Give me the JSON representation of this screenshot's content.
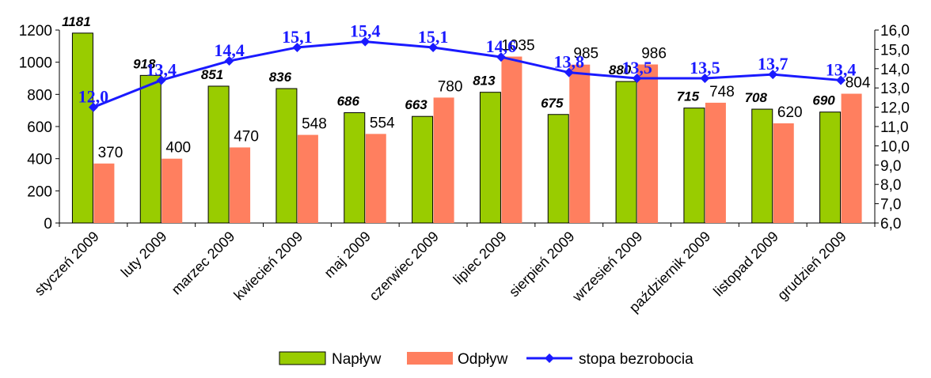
{
  "chart_data": {
    "type": "bar",
    "categories": [
      "styczeń 2009",
      "luty 2009",
      "marzec 2009",
      "kwiecień 2009",
      "maj 2009",
      "czerwiec 2009",
      "lipiec 2009",
      "sierpień 2009",
      "wrzesień 2009",
      "październik 2009",
      "listopad 2009",
      "grudzień 2009"
    ],
    "series": [
      {
        "name": "Napływ",
        "type": "bar",
        "axis": "left",
        "color": "#99cc00",
        "values": [
          1181,
          918,
          851,
          836,
          686,
          663,
          813,
          675,
          880,
          715,
          708,
          690
        ],
        "labels": [
          "1181",
          "918",
          "851",
          "836",
          "686",
          "663",
          "813",
          "675",
          "880",
          "715",
          "708",
          "690"
        ]
      },
      {
        "name": "Odpływ",
        "type": "bar",
        "axis": "left",
        "color": "#ff7f5f",
        "values": [
          370,
          400,
          470,
          548,
          554,
          780,
          1035,
          985,
          986,
          748,
          620,
          804
        ],
        "labels": [
          "370",
          "400",
          "470",
          "548",
          "554",
          "780",
          "1035",
          "985",
          "986",
          "748",
          "620",
          "804"
        ]
      },
      {
        "name": "stopa bezrobocia",
        "type": "line",
        "axis": "right",
        "color": "#1a1aff",
        "values": [
          12.0,
          13.4,
          14.4,
          15.1,
          15.4,
          15.1,
          14.6,
          13.8,
          13.5,
          13.5,
          13.7,
          13.4
        ],
        "labels": [
          "12,0",
          "13,4",
          "14,4",
          "15,1",
          "15,4",
          "15,1",
          "14,6",
          "13,8",
          "13,5",
          "13,5",
          "13,7",
          "13,4"
        ]
      }
    ],
    "ylim_left": [
      0,
      1200
    ],
    "yticks_left": [
      "0",
      "200",
      "400",
      "600",
      "800",
      "1000",
      "1200"
    ],
    "ylim_right": [
      6.0,
      16.0
    ],
    "yticks_right": [
      "6,0",
      "7,0",
      "8,0",
      "9,0",
      "10,0",
      "11,0",
      "12,0",
      "13,0",
      "14,0",
      "15,0",
      "16,0"
    ],
    "legend": {
      "position": "bottom",
      "items": [
        "Napływ",
        "Odpływ",
        "stopa bezrobocia"
      ]
    },
    "grid": false
  }
}
